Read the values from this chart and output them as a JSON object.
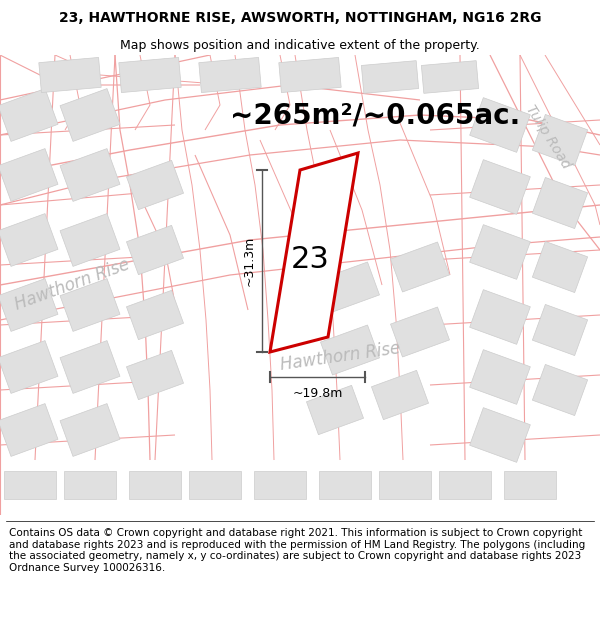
{
  "title_line1": "23, HAWTHORNE RISE, AWSWORTH, NOTTINGHAM, NG16 2RG",
  "title_line2": "Map shows position and indicative extent of the property.",
  "area_text": "~265m²/~0.065ac.",
  "label_number": "23",
  "dim_width": "~19.8m",
  "dim_height": "~31.3m",
  "street_label1": "Hawthorn Rise",
  "street_label2": "Hawthorn Rise",
  "street_label3": "Tulip Road",
  "footer": "Contains OS data © Crown copyright and database right 2021. This information is subject to Crown copyright and database rights 2023 and is reproduced with the permission of HM Land Registry. The polygons (including the associated geometry, namely x, y co-ordinates) are subject to Crown copyright and database rights 2023 Ordnance Survey 100026316.",
  "bg_color": "#ffffff",
  "map_bg": "#ffffff",
  "plot_line_color": "#f0a0a0",
  "plot_border_color": "#cc0000",
  "building_fill": "#e0e0e0",
  "building_border": "#cccccc",
  "dim_line_color": "#555555",
  "street_label_color": "#bbbbbb",
  "title_fontsize": 10,
  "subtitle_fontsize": 9,
  "area_fontsize": 20,
  "label_fontsize": 22,
  "dim_fontsize": 9,
  "street_fontsize": 12,
  "footer_fontsize": 7.5
}
